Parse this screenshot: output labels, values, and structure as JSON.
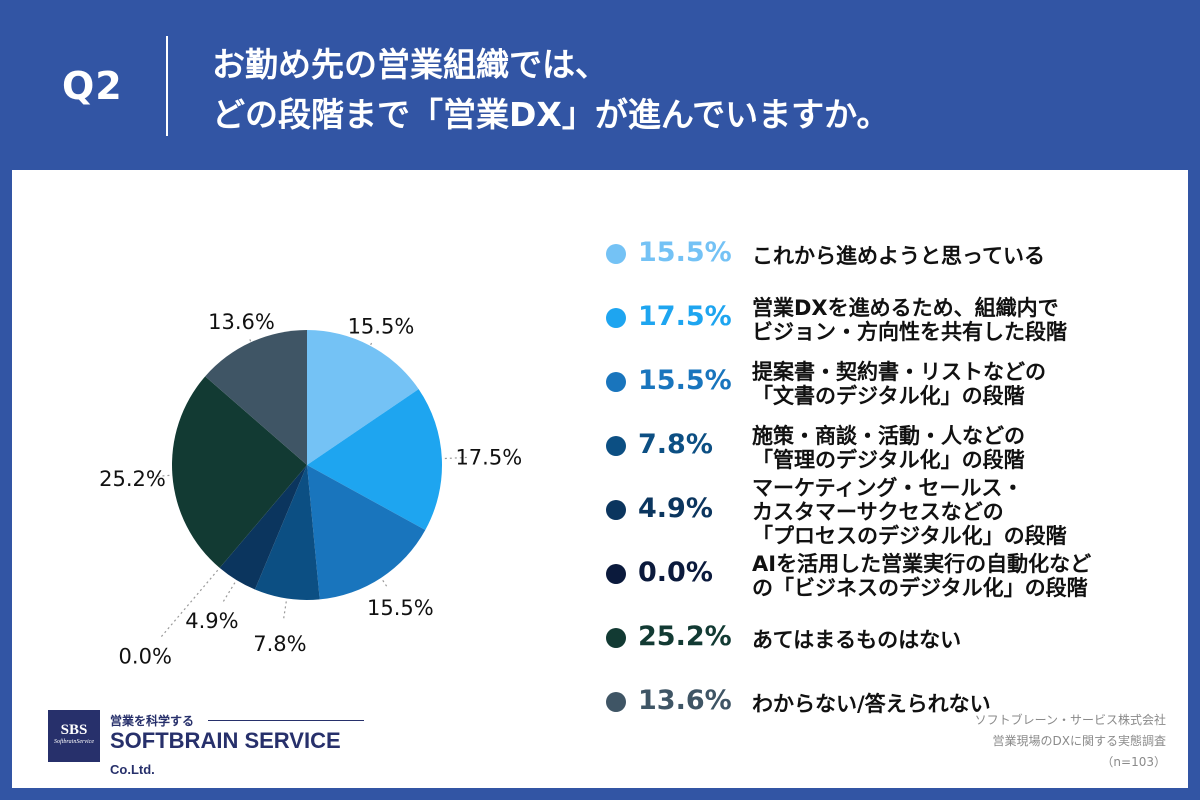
{
  "header": {
    "q_number": "Q2",
    "title_line1": "お勤め先の営業組織では、",
    "title_line2": "どの段階まで「営業DX」が進んでいますか。"
  },
  "chart_data": {
    "type": "pie",
    "title": "お勤め先の営業組織では、どの段階まで「営業DX」が進んでいますか。",
    "slices": [
      {
        "percent_label": "15.5%",
        "value": 15.5,
        "color": "#74c2f5",
        "label_lines": [
          "これから進めようと思っている"
        ]
      },
      {
        "percent_label": "17.5%",
        "value": 17.5,
        "color": "#1ea5f0",
        "label_lines": [
          "営業DXを進めるため、組織内で",
          "ビジョン・方向性を共有した段階"
        ]
      },
      {
        "percent_label": "15.5%",
        "value": 15.5,
        "color": "#1975bd",
        "label_lines": [
          "提案書・契約書・リストなどの",
          "「文書のデジタル化」の段階"
        ]
      },
      {
        "percent_label": "7.8%",
        "value": 7.8,
        "color": "#0c4f83",
        "label_lines": [
          "施策・商談・活動・人などの",
          "「管理のデジタル化」の段階"
        ]
      },
      {
        "percent_label": "4.9%",
        "value": 4.9,
        "color": "#0b355e",
        "label_lines": [
          "マーケティング・セールス・",
          "カスタマーサクセスなどの",
          "「プロセスのデジタル化」の段階"
        ]
      },
      {
        "percent_label": "0.0%",
        "value": 0.0,
        "color": "#0b1a3c",
        "label_lines": [
          "AIを活用した営業実行の自動化など",
          "の「ビジネスのデジタル化」の段階"
        ]
      },
      {
        "percent_label": "25.2%",
        "value": 25.2,
        "color": "#123a33",
        "label_lines": [
          "あてはまるものはない"
        ]
      },
      {
        "percent_label": "13.6%",
        "value": 13.6,
        "color": "#3f5565",
        "label_lines": [
          "わからない/答えられない"
        ]
      }
    ]
  },
  "logo": {
    "mark": "SBS",
    "mark_sub": "SoftbrainService",
    "tagline": "営業を科学する",
    "company": "SOFTBRAIN SERVICE",
    "company_suffix": "Co.Ltd."
  },
  "source": {
    "line1": "ソフトブレーン・サービス株式会社",
    "line2": "営業現場のDXに関する実態調査",
    "line3": "（n=103）"
  }
}
